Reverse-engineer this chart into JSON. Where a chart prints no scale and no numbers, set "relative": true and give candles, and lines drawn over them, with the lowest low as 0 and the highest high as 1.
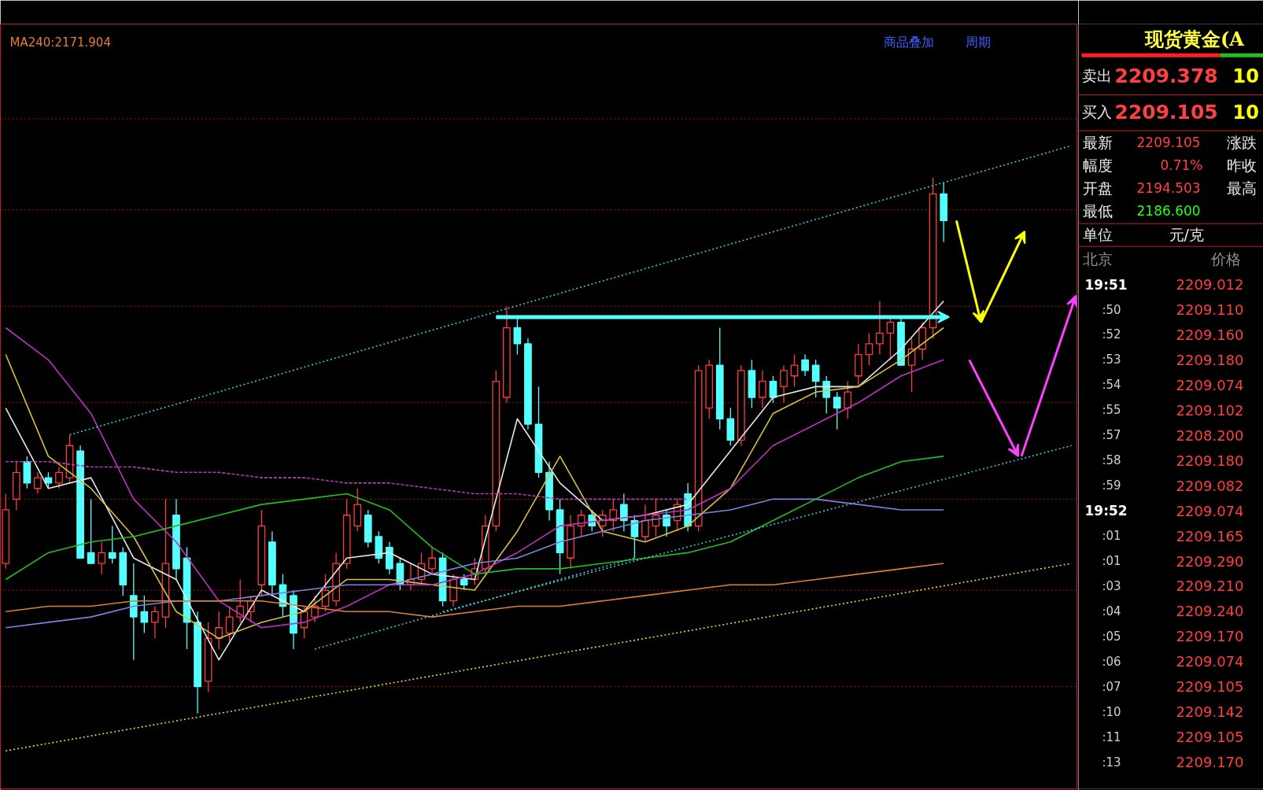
{
  "chart_data": [
    {
      "type": "candlestick",
      "relative": true,
      "tick_labels": false,
      "ref_lines": [
        {
          "axis": "y",
          "value": 1.11,
          "color": "#a01818",
          "line_style": "dotted"
        },
        {
          "axis": "y",
          "value": 0.94,
          "color": "#a01818",
          "line_style": "dotted"
        },
        {
          "axis": "y",
          "value": 0.76,
          "color": "#a01818",
          "line_style": "dotted"
        },
        {
          "axis": "y",
          "value": 0.58,
          "color": "#a01818",
          "line_style": "dotted"
        },
        {
          "axis": "y",
          "value": 0.4,
          "color": "#a01818",
          "line_style": "dotted"
        },
        {
          "axis": "y",
          "value": 0.23,
          "color": "#a01818",
          "line_style": "dotted"
        },
        {
          "axis": "y",
          "value": 0.05,
          "color": "#a01818",
          "line_style": "dotted"
        }
      ],
      "annotations": [
        "商品叠加",
        "周期"
      ],
      "categories": [
        null,
        null,
        null,
        null,
        null,
        null,
        null,
        null,
        null,
        null,
        null,
        null,
        null,
        null,
        null,
        null,
        null,
        null,
        null,
        null,
        null,
        null,
        null,
        null,
        null,
        null,
        null,
        null,
        null,
        null,
        null,
        null,
        null,
        null,
        null,
        null,
        null,
        null,
        null,
        null,
        null,
        null,
        null,
        null,
        null,
        null,
        null,
        null,
        null,
        null,
        null,
        null,
        null,
        null,
        null,
        null,
        null,
        null,
        null,
        null,
        null,
        null,
        null,
        null,
        null,
        null,
        null,
        null,
        null,
        null,
        null,
        null,
        null,
        null,
        null,
        null,
        null,
        null,
        null,
        null,
        null,
        null,
        null,
        null,
        null,
        null,
        null,
        null,
        null,
        null,
        null,
        null,
        null,
        null,
        null,
        null,
        null,
        null,
        null,
        null,
        null
      ],
      "ohlc": [
        [
          0.28,
          0.41,
          0.27,
          0.38
        ],
        [
          0.4,
          0.47,
          0.38,
          0.45
        ],
        [
          0.47,
          0.48,
          0.42,
          0.43
        ],
        [
          0.42,
          0.45,
          0.41,
          0.44
        ],
        [
          0.44,
          0.45,
          0.42,
          0.43
        ],
        [
          0.43,
          0.46,
          0.42,
          0.45
        ],
        [
          0.44,
          0.52,
          0.43,
          0.5
        ],
        [
          0.49,
          0.5,
          0.29,
          0.29
        ],
        [
          0.3,
          0.4,
          0.28,
          0.28
        ],
        [
          0.28,
          0.32,
          0.26,
          0.3
        ],
        [
          0.3,
          0.35,
          0.28,
          0.29
        ],
        [
          0.3,
          0.31,
          0.22,
          0.24
        ],
        [
          0.22,
          0.28,
          0.1,
          0.18
        ],
        [
          0.19,
          0.22,
          0.15,
          0.17
        ],
        [
          0.17,
          0.2,
          0.14,
          0.19
        ],
        [
          0.18,
          0.4,
          0.16,
          0.28
        ],
        [
          0.37,
          0.4,
          0.25,
          0.27
        ],
        [
          0.29,
          0.31,
          0.12,
          0.17
        ],
        [
          0.17,
          0.19,
          0.0,
          0.05
        ],
        [
          0.06,
          0.17,
          0.04,
          0.14
        ],
        [
          0.14,
          0.19,
          0.12,
          0.16
        ],
        [
          0.15,
          0.2,
          0.13,
          0.18
        ],
        [
          0.18,
          0.25,
          0.17,
          0.2
        ],
        [
          0.19,
          0.22,
          0.17,
          0.21
        ],
        [
          0.24,
          0.38,
          0.22,
          0.35
        ],
        [
          0.32,
          0.34,
          0.22,
          0.24
        ],
        [
          0.24,
          0.26,
          0.18,
          0.2
        ],
        [
          0.22,
          0.23,
          0.12,
          0.15
        ],
        [
          0.16,
          0.2,
          0.14,
          0.19
        ],
        [
          0.18,
          0.22,
          0.17,
          0.2
        ],
        [
          0.2,
          0.26,
          0.19,
          0.23
        ],
        [
          0.21,
          0.3,
          0.2,
          0.28
        ],
        [
          0.28,
          0.4,
          0.27,
          0.37
        ],
        [
          0.35,
          0.42,
          0.34,
          0.39
        ],
        [
          0.37,
          0.38,
          0.31,
          0.32
        ],
        [
          0.33,
          0.34,
          0.28,
          0.29
        ],
        [
          0.31,
          0.32,
          0.26,
          0.27
        ],
        [
          0.28,
          0.29,
          0.23,
          0.24
        ],
        [
          0.24,
          0.28,
          0.23,
          0.25
        ],
        [
          0.25,
          0.3,
          0.24,
          0.28
        ],
        [
          0.27,
          0.31,
          0.26,
          0.29
        ],
        [
          0.29,
          0.3,
          0.2,
          0.21
        ],
        [
          0.21,
          0.26,
          0.2,
          0.25
        ],
        [
          0.25,
          0.26,
          0.23,
          0.24
        ],
        [
          0.25,
          0.29,
          0.24,
          0.27
        ],
        [
          0.27,
          0.37,
          0.26,
          0.35
        ],
        [
          0.35,
          0.64,
          0.34,
          0.62
        ],
        [
          0.59,
          0.76,
          0.58,
          0.72
        ],
        [
          0.72,
          0.74,
          0.67,
          0.69
        ],
        [
          0.69,
          0.7,
          0.53,
          0.54
        ],
        [
          0.54,
          0.61,
          0.44,
          0.45
        ],
        [
          0.45,
          0.47,
          0.36,
          0.38
        ],
        [
          0.38,
          0.4,
          0.26,
          0.3
        ],
        [
          0.29,
          0.37,
          0.27,
          0.35
        ],
        [
          0.35,
          0.38,
          0.33,
          0.37
        ],
        [
          0.37,
          0.38,
          0.34,
          0.35
        ],
        [
          0.35,
          0.38,
          0.33,
          0.37
        ],
        [
          0.36,
          0.4,
          0.34,
          0.38
        ],
        [
          0.39,
          0.41,
          0.34,
          0.36
        ],
        [
          0.36,
          0.37,
          0.29,
          0.33
        ],
        [
          0.33,
          0.39,
          0.32,
          0.36
        ],
        [
          0.35,
          0.4,
          0.33,
          0.37
        ],
        [
          0.37,
          0.38,
          0.33,
          0.35
        ],
        [
          0.36,
          0.4,
          0.34,
          0.39
        ],
        [
          0.41,
          0.43,
          0.34,
          0.35
        ],
        [
          0.35,
          0.65,
          0.34,
          0.64
        ],
        [
          0.57,
          0.66,
          0.55,
          0.65
        ],
        [
          0.65,
          0.72,
          0.53,
          0.55
        ],
        [
          0.55,
          0.57,
          0.5,
          0.51
        ],
        [
          0.51,
          0.65,
          0.5,
          0.64
        ],
        [
          0.64,
          0.66,
          0.57,
          0.59
        ],
        [
          0.59,
          0.64,
          0.57,
          0.62
        ],
        [
          0.62,
          0.63,
          0.58,
          0.59
        ],
        [
          0.61,
          0.65,
          0.58,
          0.64
        ],
        [
          0.63,
          0.67,
          0.61,
          0.65
        ],
        [
          0.66,
          0.67,
          0.63,
          0.64
        ],
        [
          0.65,
          0.66,
          0.59,
          0.62
        ],
        [
          0.62,
          0.63,
          0.56,
          0.59
        ],
        [
          0.59,
          0.6,
          0.53,
          0.57
        ],
        [
          0.57,
          0.62,
          0.55,
          0.6
        ],
        [
          0.63,
          0.69,
          0.61,
          0.67
        ],
        [
          0.67,
          0.71,
          0.65,
          0.69
        ],
        [
          0.69,
          0.77,
          0.67,
          0.71
        ],
        [
          0.71,
          0.74,
          0.66,
          0.73
        ],
        [
          0.73,
          0.74,
          0.65,
          0.65
        ],
        [
          0.65,
          0.7,
          0.6,
          0.68
        ],
        [
          0.68,
          0.73,
          0.66,
          0.72
        ],
        [
          0.72,
          1.0,
          0.7,
          0.97
        ],
        [
          0.97,
          0.99,
          0.88,
          0.92
        ],
        null,
        null,
        null,
        null,
        null,
        null,
        null,
        null,
        null,
        null,
        null,
        null
      ],
      "series": [
        {
          "type": "line",
          "color": "#e8e8e8",
          "values": [
            0.57,
            null,
            null,
            null,
            0.42,
            null,
            null,
            null,
            0.44,
            null,
            null,
            null,
            0.29,
            null,
            null,
            null,
            0.25,
            null,
            null,
            null,
            0.1,
            null,
            null,
            null,
            0.23,
            null,
            null,
            null,
            0.19,
            null,
            null,
            null,
            0.29,
            null,
            null,
            null,
            0.3,
            null,
            null,
            null,
            0.26,
            null,
            null,
            null,
            0.25,
            null,
            null,
            null,
            0.55,
            null,
            null,
            null,
            0.43,
            null,
            null,
            null,
            0.36,
            null,
            null,
            null,
            0.37,
            null,
            null,
            null,
            0.39,
            null,
            null,
            null,
            0.49,
            null,
            null,
            null,
            0.59,
            null,
            null,
            null,
            0.61,
            null,
            null,
            null,
            0.61,
            null,
            null,
            null,
            0.68,
            null,
            null,
            null,
            0.77,
            null,
            null,
            null,
            null,
            null,
            null,
            null,
            null,
            null,
            null,
            null,
            null
          ]
        },
        {
          "type": "line",
          "color": "#d8c040",
          "values": [
            0.67,
            null,
            null,
            null,
            0.48,
            null,
            null,
            null,
            0.42,
            null,
            null,
            null,
            0.33,
            null,
            null,
            null,
            0.19,
            null,
            null,
            null,
            0.14,
            null,
            null,
            null,
            0.17,
            null,
            null,
            null,
            0.19,
            null,
            null,
            null,
            0.25,
            null,
            null,
            null,
            0.25,
            null,
            null,
            null,
            0.24,
            null,
            null,
            null,
            0.23,
            null,
            null,
            null,
            0.34,
            null,
            null,
            null,
            0.48,
            null,
            null,
            null,
            0.34,
            null,
            null,
            null,
            0.32,
            null,
            null,
            null,
            0.35,
            null,
            null,
            null,
            0.42,
            null,
            null,
            null,
            0.56,
            null,
            null,
            null,
            0.6,
            null,
            null,
            null,
            0.61,
            null,
            null,
            null,
            0.66,
            null,
            null,
            null,
            0.72,
            null,
            null,
            null,
            null,
            null,
            null,
            null,
            null,
            null,
            null,
            null,
            null
          ]
        },
        {
          "type": "line",
          "color": "#c030c0",
          "values": [
            0.72,
            null,
            null,
            null,
            0.66,
            null,
            null,
            null,
            0.56,
            null,
            null,
            null,
            0.4,
            null,
            null,
            null,
            0.32,
            null,
            null,
            null,
            0.21,
            null,
            null,
            null,
            0.16,
            null,
            null,
            null,
            0.17,
            null,
            null,
            null,
            0.2,
            null,
            null,
            null,
            0.24,
            null,
            null,
            null,
            0.24,
            null,
            null,
            null,
            0.26,
            null,
            null,
            null,
            0.3,
            null,
            null,
            null,
            0.35,
            null,
            null,
            null,
            0.36,
            null,
            null,
            null,
            0.37,
            null,
            null,
            null,
            0.38,
            null,
            null,
            null,
            0.42,
            null,
            null,
            null,
            0.5,
            null,
            null,
            null,
            0.54,
            null,
            null,
            null,
            0.58,
            null,
            null,
            null,
            0.63,
            null,
            null,
            null,
            0.66,
            null,
            null,
            null,
            null,
            null,
            null,
            null,
            null,
            null,
            null,
            null,
            null
          ]
        },
        {
          "type": "line",
          "color": "#20c020",
          "values": [
            0.25,
            null,
            null,
            null,
            0.3,
            null,
            null,
            null,
            0.32,
            null,
            null,
            null,
            0.33,
            null,
            null,
            null,
            0.35,
            null,
            null,
            null,
            0.37,
            null,
            null,
            null,
            0.39,
            null,
            null,
            null,
            0.4,
            null,
            null,
            null,
            0.41,
            null,
            null,
            null,
            0.38,
            null,
            null,
            null,
            0.31,
            null,
            null,
            null,
            0.26,
            null,
            null,
            null,
            0.27,
            null,
            null,
            null,
            0.27,
            null,
            null,
            null,
            0.28,
            null,
            null,
            null,
            0.29,
            null,
            null,
            null,
            0.3,
            null,
            null,
            null,
            0.32,
            null,
            null,
            null,
            0.36,
            null,
            null,
            null,
            0.4,
            null,
            null,
            null,
            0.44,
            null,
            null,
            null,
            0.47,
            null,
            null,
            null,
            0.48,
            null,
            null,
            null,
            null,
            null,
            null,
            null,
            null,
            null,
            null,
            null,
            null
          ]
        },
        {
          "type": "line",
          "color": "#8080e0",
          "values": [
            0.16,
            null,
            null,
            null,
            0.17,
            null,
            null,
            null,
            0.18,
            null,
            null,
            null,
            0.2,
            null,
            null,
            null,
            0.21,
            null,
            null,
            null,
            0.21,
            null,
            null,
            null,
            0.22,
            null,
            null,
            null,
            0.23,
            null,
            null,
            null,
            0.24,
            null,
            null,
            null,
            0.24,
            null,
            null,
            null,
            0.26,
            null,
            null,
            null,
            0.28,
            null,
            null,
            null,
            0.29,
            null,
            null,
            null,
            0.32,
            null,
            null,
            null,
            0.34,
            null,
            null,
            null,
            0.36,
            null,
            null,
            null,
            0.37,
            null,
            null,
            null,
            0.38,
            null,
            null,
            null,
            0.4,
            null,
            null,
            null,
            0.4,
            null,
            null,
            null,
            0.39,
            null,
            null,
            null,
            0.38,
            null,
            null,
            null,
            0.38,
            null,
            null,
            null,
            null,
            null,
            null,
            null,
            null,
            null,
            null,
            null,
            null
          ]
        },
        {
          "type": "line",
          "name": "MA240:2171.904",
          "color": "#e08030",
          "values": [
            0.19,
            null,
            null,
            null,
            0.2,
            null,
            null,
            null,
            0.2,
            null,
            null,
            null,
            0.21,
            null,
            null,
            null,
            0.21,
            null,
            null,
            null,
            0.21,
            null,
            null,
            null,
            0.21,
            null,
            null,
            null,
            0.2,
            null,
            null,
            null,
            0.19,
            null,
            null,
            null,
            0.19,
            null,
            null,
            null,
            0.18,
            null,
            null,
            null,
            0.19,
            null,
            null,
            null,
            0.2,
            null,
            null,
            null,
            0.2,
            null,
            null,
            null,
            0.21,
            null,
            null,
            null,
            0.22,
            null,
            null,
            null,
            0.23,
            null,
            null,
            null,
            0.24,
            null,
            null,
            null,
            0.24,
            null,
            null,
            null,
            0.25,
            null,
            null,
            null,
            0.26,
            null,
            null,
            null,
            0.27,
            null,
            null,
            null,
            0.28,
            null,
            null,
            null,
            null,
            null,
            null,
            null,
            null,
            null,
            null,
            null,
            null
          ]
        },
        {
          "type": "line",
          "color": "#b040b0",
          "line_style": "dashed",
          "values": [
            0.47,
            null,
            null,
            null,
            0.47,
            null,
            null,
            null,
            0.46,
            null,
            null,
            null,
            0.46,
            null,
            null,
            null,
            0.45,
            null,
            null,
            null,
            0.45,
            null,
            null,
            null,
            0.44,
            null,
            null,
            null,
            0.44,
            null,
            null,
            null,
            0.43,
            null,
            null,
            null,
            0.43,
            null,
            null,
            null,
            0.42,
            null,
            null,
            null,
            0.41,
            null,
            null,
            null,
            0.41,
            null,
            null,
            null,
            0.4,
            null,
            null,
            null,
            0.4,
            null,
            null,
            null,
            0.4,
            null,
            null,
            null,
            0.4,
            null,
            null,
            null,
            null,
            null,
            null,
            null,
            null,
            null,
            null,
            null,
            null,
            null,
            null,
            null,
            null,
            null,
            null,
            null,
            null,
            null,
            null,
            null,
            null,
            null,
            null,
            null,
            null,
            null,
            null,
            null,
            null,
            null,
            null,
            null,
            null
          ]
        },
        {
          "type": "line",
          "color": "#40c8d8",
          "line_style": "dotted",
          "values": [
            null,
            null,
            null,
            null,
            null,
            null,
            0.52,
            null,
            null,
            null,
            null,
            null,
            null,
            null,
            null,
            null,
            null,
            null,
            null,
            null,
            null,
            null,
            null,
            null,
            null,
            null,
            null,
            null,
            null,
            null,
            null,
            null,
            null,
            null,
            null,
            null,
            null,
            null,
            null,
            null,
            null,
            null,
            null,
            null,
            null,
            null,
            null,
            null,
            null,
            null,
            null,
            null,
            null,
            null,
            null,
            null,
            null,
            null,
            null,
            null,
            null,
            null,
            null,
            null,
            null,
            null,
            null,
            null,
            null,
            null,
            null,
            null,
            null,
            null,
            null,
            null,
            null,
            null,
            null,
            null,
            null,
            null,
            null,
            null,
            null,
            null,
            null,
            null,
            null,
            null,
            null,
            null,
            null,
            null,
            null,
            null,
            null,
            null,
            null,
            null,
            1.06
          ]
        },
        {
          "type": "line",
          "color": "#40c8d8",
          "line_style": "dotted",
          "values": [
            null,
            null,
            null,
            null,
            null,
            null,
            null,
            null,
            null,
            null,
            null,
            null,
            null,
            null,
            null,
            null,
            null,
            null,
            null,
            null,
            null,
            null,
            null,
            null,
            null,
            null,
            null,
            null,
            null,
            0.12,
            null,
            null,
            null,
            null,
            null,
            null,
            null,
            null,
            null,
            null,
            null,
            null,
            null,
            null,
            null,
            null,
            null,
            null,
            null,
            null,
            null,
            null,
            null,
            null,
            null,
            null,
            null,
            null,
            null,
            0.29,
            null,
            null,
            null,
            null,
            null,
            null,
            null,
            null,
            null,
            null,
            null,
            null,
            null,
            null,
            null,
            null,
            null,
            null,
            null,
            null,
            null,
            null,
            null,
            null,
            null,
            null,
            null,
            null,
            null,
            null,
            null,
            null,
            null,
            null,
            null,
            null,
            null,
            null,
            null,
            null,
            null
          ]
        },
        {
          "type": "line",
          "color": "#40c8d8",
          "line_style": "dotted",
          "values": [
            null,
            null,
            null,
            null,
            null,
            null,
            null,
            null,
            null,
            null,
            null,
            null,
            null,
            null,
            null,
            null,
            null,
            null,
            null,
            null,
            null,
            null,
            null,
            null,
            null,
            null,
            null,
            null,
            null,
            null,
            null,
            null,
            null,
            null,
            null,
            null,
            null,
            null,
            null,
            null,
            null,
            0.19,
            null,
            null,
            null,
            null,
            null,
            null,
            null,
            null,
            null,
            null,
            null,
            null,
            null,
            null,
            null,
            null,
            null,
            null,
            null,
            null,
            null,
            null,
            null,
            null,
            null,
            null,
            null,
            null,
            null,
            null,
            null,
            null,
            null,
            null,
            null,
            null,
            null,
            null,
            null,
            null,
            null,
            null,
            null,
            null,
            null,
            null,
            null,
            null,
            null,
            null,
            null,
            null,
            null,
            null,
            null,
            null,
            null,
            null,
            0.5
          ]
        },
        {
          "type": "line",
          "color": "#e0e040",
          "line_style": "dotted",
          "values": [
            -0.07,
            null,
            null,
            null,
            null,
            null,
            null,
            null,
            null,
            null,
            null,
            null,
            null,
            null,
            null,
            null,
            null,
            null,
            null,
            null,
            null,
            null,
            null,
            null,
            null,
            null,
            null,
            null,
            null,
            null,
            null,
            null,
            null,
            null,
            null,
            null,
            null,
            null,
            null,
            null,
            null,
            null,
            null,
            null,
            null,
            null,
            null,
            null,
            null,
            null,
            null,
            null,
            null,
            null,
            null,
            null,
            null,
            null,
            null,
            null,
            null,
            null,
            null,
            null,
            null,
            null,
            null,
            null,
            null,
            null,
            null,
            null,
            null,
            null,
            null,
            null,
            null,
            null,
            null,
            null,
            null,
            null,
            null,
            null,
            null,
            null,
            null,
            null,
            null,
            null,
            null,
            null,
            null,
            null,
            null,
            null,
            null,
            null,
            null,
            null,
            0.28
          ]
        }
      ]
    },
    {
      "type": "other",
      "title": "现货黄金(A",
      "annotations": [
        "卖出",
        "2209.378",
        "10",
        "买入",
        "2209.105",
        "10",
        "最新",
        "2209.105",
        "涨跌",
        "幅度",
        "0.71%",
        "昨收",
        "开盘",
        "2194.503",
        "最高",
        "最低",
        "2186.600",
        "单位",
        "元/克",
        "北京",
        "价格",
        "19:51",
        "2209.012",
        ":50",
        "2209.110",
        ":52",
        "2209.160",
        ":53",
        "2209.180",
        ":54",
        "2209.074",
        ":55",
        "2209.102",
        ":57",
        "2208.200",
        ":58",
        "2209.180",
        ":59",
        "2209.082",
        "19:52",
        "2209.074",
        ":01",
        "2209.165",
        ":01",
        "2209.290",
        ":03",
        "2209.210",
        ":04",
        "2209.240",
        ":05",
        "2209.170",
        ":06",
        "2209.074",
        ":07",
        "2209.105",
        ":10",
        "2209.142",
        ":11",
        "2209.105",
        ":13",
        "2209.170"
      ]
    }
  ]
}
